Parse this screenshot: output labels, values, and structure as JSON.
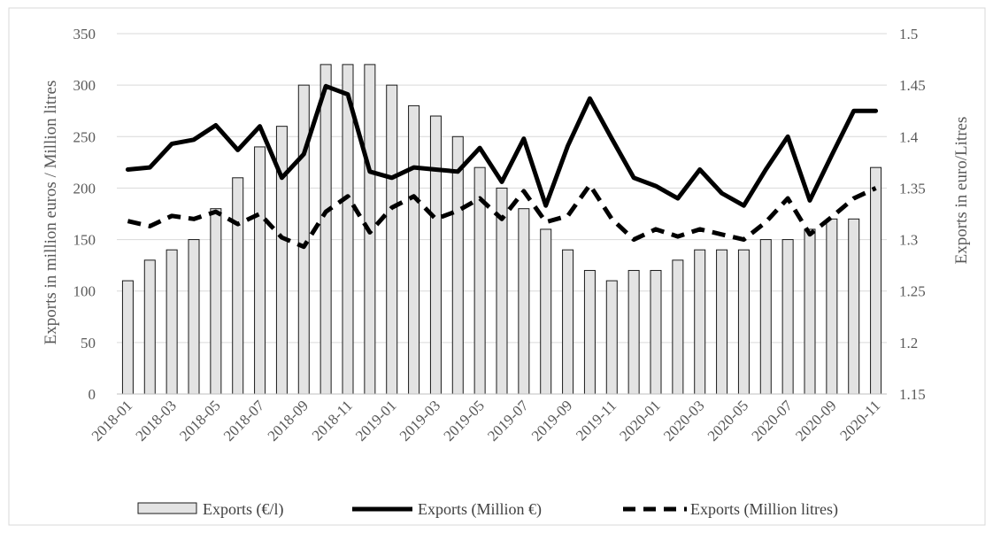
{
  "chart_data": {
    "type": "bar",
    "title": "",
    "categories": [
      "2018-01",
      "2018-02",
      "2018-03",
      "2018-04",
      "2018-05",
      "2018-06",
      "2018-07",
      "2018-08",
      "2018-09",
      "2018-10",
      "2018-11",
      "2018-12",
      "2019-01",
      "2019-02",
      "2019-03",
      "2019-04",
      "2019-05",
      "2019-06",
      "2019-07",
      "2019-08",
      "2019-09",
      "2019-10",
      "2019-11",
      "2019-12",
      "2020-01",
      "2020-02",
      "2020-03",
      "2020-04",
      "2020-05",
      "2020-06",
      "2020-07",
      "2020-08",
      "2020-09",
      "2020-10",
      "2020-11"
    ],
    "x_tick_labels": [
      "2018-01",
      "2018-03",
      "2018-05",
      "2018-07",
      "2018-09",
      "2018-11",
      "2019-01",
      "2019-03",
      "2019-05",
      "2019-07",
      "2019-09",
      "2019-11",
      "2020-01",
      "2020-03",
      "2020-05",
      "2020-07",
      "2020-09",
      "2020-11"
    ],
    "ylabel": "Exports in million euros / Million litres",
    "y2label": "Exports in euro/Litres",
    "ylim": [
      0,
      350
    ],
    "y_ticks": [
      "0",
      "50",
      "100",
      "150",
      "200",
      "250",
      "300",
      "350"
    ],
    "y2lim": [
      1.15,
      1.5
    ],
    "y2_ticks": [
      "1.15",
      "1.2",
      "1.25",
      "1.3",
      "1.35",
      "1.4",
      "1.45",
      "1.5"
    ],
    "grid": true,
    "legend_position": "bottom",
    "series": [
      {
        "name": "Exports (€/l)",
        "type": "bar",
        "axis": "left",
        "values": [
          110,
          130,
          140,
          150,
          180,
          210,
          240,
          260,
          300,
          320,
          320,
          320,
          300,
          280,
          270,
          250,
          220,
          200,
          180,
          160,
          140,
          120,
          110,
          120,
          120,
          130,
          140,
          140,
          140,
          150,
          150,
          160,
          170,
          170,
          220
        ]
      },
      {
        "name": "Exports (Million €)",
        "type": "line",
        "style": "solid",
        "axis": "left",
        "values": [
          218,
          220,
          243,
          247,
          261,
          237,
          260,
          210,
          233,
          299,
          291,
          216,
          210,
          220,
          218,
          216,
          239,
          206,
          248,
          183,
          241,
          287,
          248,
          210,
          202,
          190,
          218,
          195,
          183,
          218,
          250,
          188,
          232,
          275,
          275
        ]
      },
      {
        "name": "Exports (Million litres)",
        "type": "line",
        "style": "dashed",
        "axis": "left",
        "values": [
          168,
          163,
          173,
          170,
          177,
          165,
          175,
          152,
          143,
          177,
          192,
          157,
          181,
          192,
          170,
          178,
          190,
          170,
          197,
          167,
          173,
          203,
          170,
          150,
          160,
          153,
          160,
          155,
          150,
          167,
          190,
          155,
          172,
          190,
          200
        ]
      }
    ]
  }
}
